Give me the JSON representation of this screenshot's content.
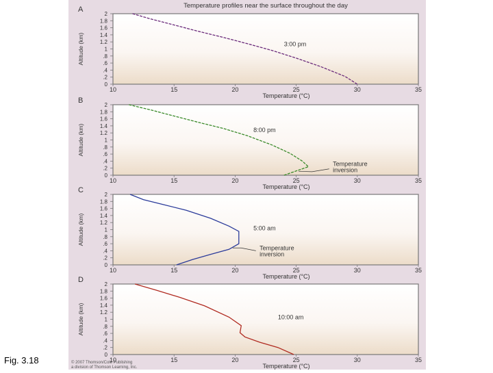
{
  "figure_caption": "Fig. 3.18",
  "credit": [
    "© 2007 Thomson/Cole Publishing",
    "a division of Thomson Learning, Inc."
  ],
  "colors": {
    "panel_background": "#e7dbe3",
    "plot_background_top": "#ffffff",
    "plot_background_bottom": "#ecdcc9"
  },
  "chart_data": [
    {
      "type": "line",
      "panel_letter": "A",
      "title": "Temperature profiles near the surface throughout the day",
      "xlabel": "Temperature (°C)",
      "ylabel": "Altitude (km)",
      "xlim": [
        10,
        35
      ],
      "ylim": [
        0,
        2
      ],
      "x_ticks": [
        10,
        15,
        20,
        25,
        30,
        35
      ],
      "y_ticks": [
        0,
        0.2,
        0.4,
        0.6,
        0.8,
        1,
        1.2,
        1.4,
        1.6,
        1.8,
        2
      ],
      "grid": false,
      "series": [
        {
          "name": "3:00 pm",
          "color": "#6a2a7a",
          "x": [
            11.6,
            13,
            15,
            17,
            19,
            21,
            23,
            25,
            27,
            29,
            30
          ],
          "y": [
            2,
            1.86,
            1.68,
            1.5,
            1.33,
            1.15,
            0.96,
            0.74,
            0.5,
            0.22,
            0
          ]
        }
      ],
      "annotations": [
        {
          "text": "3:00 pm",
          "x": 24,
          "y": 1.08
        }
      ]
    },
    {
      "type": "line",
      "panel_letter": "B",
      "title": "",
      "xlabel": "Temperature (°C)",
      "ylabel": "Altitude (km)",
      "xlim": [
        10,
        35
      ],
      "ylim": [
        0,
        2
      ],
      "x_ticks": [
        10,
        15,
        20,
        25,
        30,
        35
      ],
      "y_ticks": [
        0,
        0.2,
        0.4,
        0.6,
        0.8,
        1,
        1.2,
        1.4,
        1.6,
        1.8,
        2
      ],
      "grid": false,
      "series": [
        {
          "name": "8:00 pm",
          "color": "#3a8a2a",
          "x": [
            11.3,
            13,
            15,
            17,
            19,
            21,
            23,
            24.5,
            25.5,
            26,
            25,
            24
          ],
          "y": [
            2,
            1.86,
            1.68,
            1.5,
            1.33,
            1.12,
            0.86,
            0.62,
            0.4,
            0.24,
            0.12,
            0
          ]
        }
      ],
      "annotations": [
        {
          "text": "8:00 pm",
          "x": 21.5,
          "y": 1.22
        },
        {
          "text": "Temperature inversion",
          "x": 28,
          "y": 0.22
        }
      ]
    },
    {
      "type": "line",
      "panel_letter": "C",
      "title": "",
      "xlabel": "Temperature (°C)",
      "ylabel": "Altitude (km)",
      "xlim": [
        10,
        35
      ],
      "ylim": [
        0,
        2
      ],
      "x_ticks": [
        10,
        15,
        20,
        25,
        30,
        35
      ],
      "y_ticks": [
        0,
        0.2,
        0.4,
        0.6,
        0.8,
        1,
        1.2,
        1.4,
        1.6,
        1.8,
        2
      ],
      "grid": false,
      "series": [
        {
          "name": "5:00 am",
          "color": "#2a3a9a",
          "x": [
            11.4,
            12.5,
            14,
            16,
            18,
            19.5,
            20.3,
            20.3,
            19.5,
            18,
            16.5,
            15.2
          ],
          "y": [
            2,
            1.85,
            1.72,
            1.55,
            1.32,
            1.1,
            0.95,
            0.6,
            0.44,
            0.3,
            0.15,
            0
          ]
        }
      ],
      "annotations": [
        {
          "text": "5:00 am",
          "x": 21.5,
          "y": 0.98
        },
        {
          "text": "Temperature inversion",
          "x": 22,
          "y": 0.38
        }
      ]
    },
    {
      "type": "line",
      "panel_letter": "D",
      "title": "",
      "xlabel": "Temperature (°C)",
      "ylabel": "Altitude (km)",
      "xlim": [
        10,
        35
      ],
      "ylim": [
        0,
        2
      ],
      "x_ticks": [
        10,
        15,
        20,
        25,
        30,
        35
      ],
      "y_ticks": [
        0,
        0.2,
        0.4,
        0.6,
        0.8,
        1,
        1.2,
        1.4,
        1.6,
        1.8,
        2
      ],
      "grid": false,
      "series": [
        {
          "name": "10:00 am",
          "color": "#b02a20",
          "x": [
            11.8,
            13.5,
            15.5,
            17.5,
            19.5,
            20.5,
            20.4,
            20.8,
            22,
            23.5,
            24.8
          ],
          "y": [
            2,
            1.83,
            1.62,
            1.38,
            1.06,
            0.82,
            0.62,
            0.5,
            0.35,
            0.2,
            0
          ]
        }
      ],
      "annotations": [
        {
          "text": "10:00 am",
          "x": 23.5,
          "y": 1.0
        }
      ]
    }
  ]
}
